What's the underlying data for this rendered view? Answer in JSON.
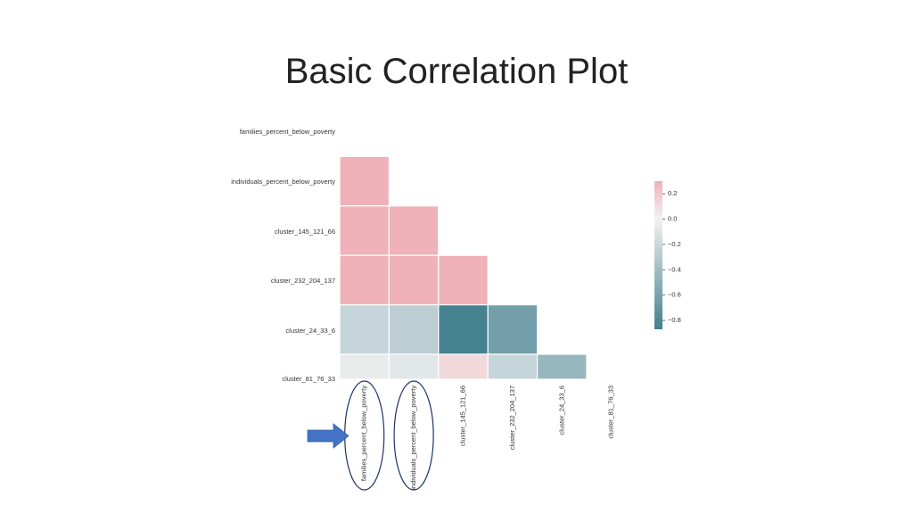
{
  "slide": {
    "title": "Basic Correlation Plot"
  },
  "chart_data": {
    "type": "heatmap",
    "variant": "lower-triangle correlation matrix (upper triangle and diagonal masked)",
    "row_labels": [
      "families_percent_below_poverty",
      "individuals_percent_below_poverty",
      "cluster_145_121_66",
      "cluster_232_204_137",
      "cluster_24_33_6",
      "cluster_81_76_33"
    ],
    "col_labels": [
      "families_percent_below_poverty",
      "individuals_percent_below_poverty",
      "cluster_145_121_66",
      "cluster_232_204_137",
      "cluster_24_33_6",
      "cluster_81_76_33"
    ],
    "values": [
      [
        null,
        null,
        null,
        null,
        null,
        null
      ],
      [
        0.33,
        null,
        null,
        null,
        null,
        null
      ],
      [
        0.33,
        0.33,
        null,
        null,
        null,
        null
      ],
      [
        0.33,
        0.33,
        0.33,
        null,
        null,
        null
      ],
      [
        -0.22,
        -0.27,
        -0.85,
        -0.63,
        null,
        null
      ],
      [
        -0.05,
        -0.08,
        0.12,
        -0.22,
        -0.45,
        null
      ]
    ],
    "colorbar": {
      "ticks": [
        0.2,
        0.0,
        -0.2,
        -0.4,
        -0.6,
        -0.8
      ],
      "tick_labels": [
        "0.2",
        "0.0",
        "−0.2",
        "−0.4",
        "−0.6",
        "−0.8"
      ],
      "range": [
        -0.87,
        0.3
      ],
      "colormap": "diverging blue to pink (seaborn 220/10)",
      "color_low": "#437f8e",
      "color_mid": "#f2f2f2",
      "color_high": "#efb2b8"
    },
    "annotations": {
      "circled_columns": [
        "families_percent_below_poverty",
        "individuals_percent_below_poverty"
      ],
      "arrow_color": "#4472c4",
      "circle_color": "#1f3566"
    }
  }
}
